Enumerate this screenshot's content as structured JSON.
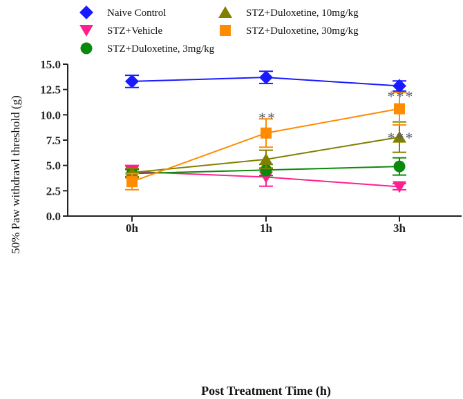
{
  "chart_data": {
    "type": "line",
    "title": "",
    "xlabel": "Post Treatment Time (h)",
    "ylabel": "50% Paw withdrawl threshold (g)",
    "categories": [
      "0h",
      "1h",
      "3h"
    ],
    "ylim": [
      0,
      15
    ],
    "yticks": [
      "0.0",
      "2.5",
      "5.0",
      "7.5",
      "10.0",
      "12.5",
      "15.0"
    ],
    "grid": false,
    "legend": "top",
    "series": [
      {
        "name": "Naive Control",
        "color": "#1a1aff",
        "marker": "diamond",
        "values": [
          13.3,
          13.7,
          12.85
        ],
        "errors": [
          0.6,
          0.6,
          0.5
        ]
      },
      {
        "name": "STZ+Vehicle",
        "color": "#ff1f8f",
        "marker": "triangle-down",
        "values": [
          4.4,
          3.85,
          2.9
        ],
        "errors": [
          0.6,
          0.9,
          0.3
        ]
      },
      {
        "name": "STZ+Duloxetine, 3mg/kg",
        "color": "#0a8a0a",
        "marker": "circle",
        "values": [
          4.2,
          4.55,
          4.9
        ],
        "errors": [
          0.4,
          0.55,
          0.85
        ]
      },
      {
        "name": "STZ+Duloxetine, 10mg/kg",
        "color": "#808000",
        "marker": "triangle-up",
        "values": [
          4.3,
          5.6,
          7.8
        ],
        "errors": [
          0.4,
          0.9,
          1.5
        ]
      },
      {
        "name": "STZ+Duloxetine, 30mg/kg",
        "color": "#ff8c00",
        "marker": "square",
        "values": [
          3.4,
          8.2,
          10.6
        ],
        "errors": [
          0.8,
          1.4,
          1.6
        ]
      }
    ],
    "annotations": [
      {
        "category": "1h",
        "y": 9.9,
        "text": "**"
      },
      {
        "category": "3h",
        "y": 12.0,
        "text": "***"
      },
      {
        "category": "3h",
        "y": 7.9,
        "text": "***"
      }
    ]
  }
}
